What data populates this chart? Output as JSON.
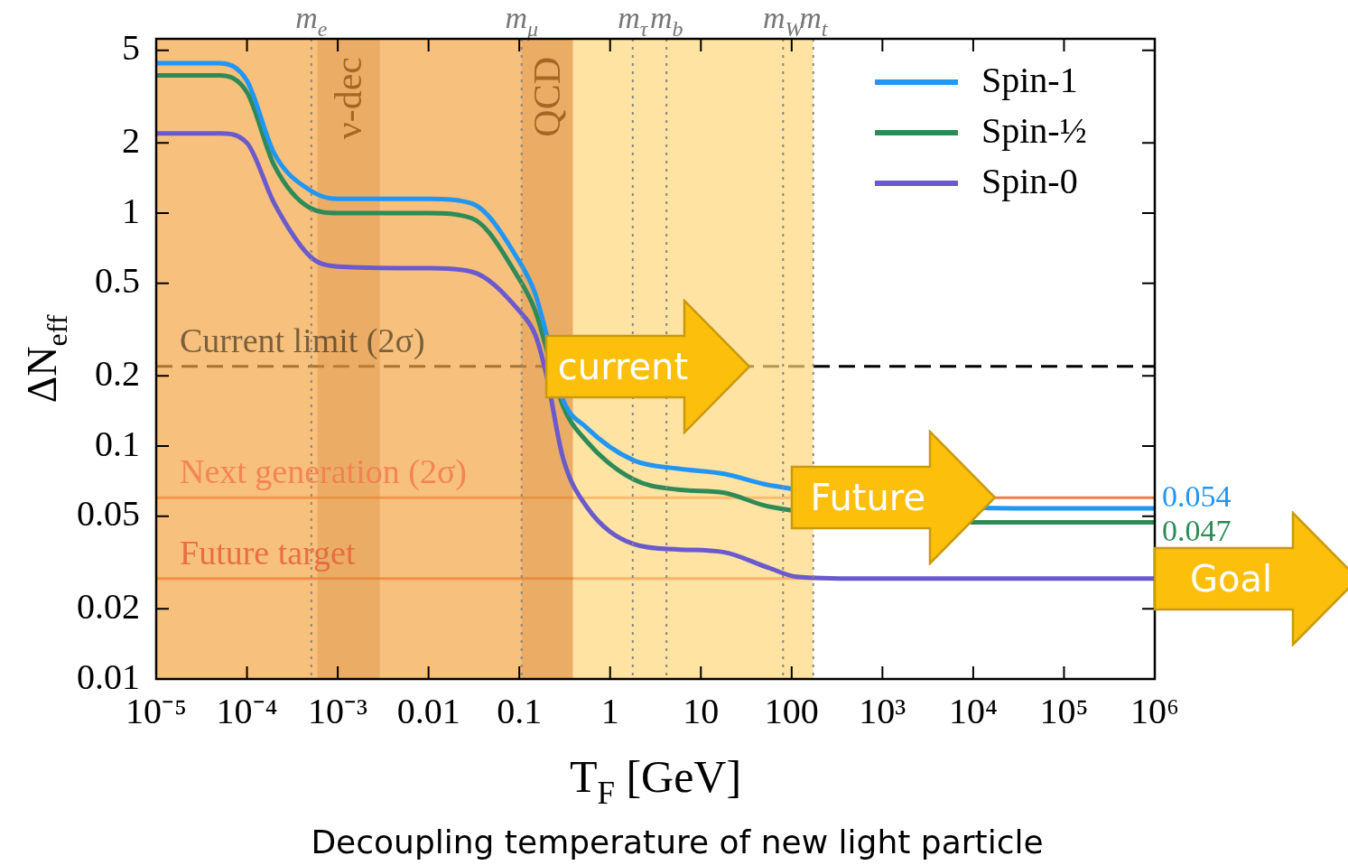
{
  "chart_data": {
    "type": "line",
    "xlabel": "T$_{F}$ [GeV]",
    "ylabel": "ΔN$_{eff}$",
    "log": "xy",
    "xlim": [
      1e-05,
      1000000
    ],
    "ylim": [
      0.01,
      5.6
    ],
    "xticks": [
      {
        "value": 1e-05,
        "label": "10⁻⁵"
      },
      {
        "value": 0.0001,
        "label": "10⁻⁴"
      },
      {
        "value": 0.001,
        "label": "10⁻³"
      },
      0.01,
      0.1,
      1,
      10,
      100,
      {
        "value": 1000,
        "label": "10³"
      },
      {
        "value": 10000,
        "label": "10⁴"
      },
      {
        "value": 100000,
        "label": "10⁵"
      },
      {
        "value": 1000000,
        "label": "10⁶"
      }
    ],
    "yticks": [
      0.01,
      0.02,
      0.05,
      0.1,
      0.2,
      0.5,
      1,
      2,
      5
    ],
    "x": [
      1e-05,
      5e-05,
      0.0001,
      0.0002,
      0.0005,
      0.001,
      0.01,
      0.03,
      0.1,
      0.15,
      0.2,
      0.3,
      0.55,
      1.8,
      5.6,
      18,
      56,
      113,
      550,
      1000000
    ],
    "series": [
      {
        "name": "Spin-1",
        "color": "#2196f3",
        "x": [
          1e-05,
          5e-05,
          0.0001,
          0.0002,
          0.0005,
          0.001,
          0.01,
          0.03,
          0.1,
          0.15,
          0.2,
          0.3,
          0.55,
          1.8,
          5.6,
          18,
          56,
          30000,
          1000000
        ],
        "values": [
          4.4,
          4.4,
          3.7,
          1.8,
          1.25,
          1.15,
          1.15,
          1.1,
          0.62,
          0.45,
          0.3,
          0.16,
          0.12,
          0.087,
          0.08,
          0.076,
          0.068,
          0.054,
          0.054
        ],
        "value_labels": [
          null,
          null,
          null,
          null,
          null,
          null,
          null,
          null,
          null,
          null,
          null,
          null,
          null,
          null,
          null,
          null,
          null,
          null,
          "0.054"
        ]
      },
      {
        "name": "Spin-½",
        "color": "#2e8b57",
        "x": [
          1e-05,
          5e-05,
          0.0001,
          0.0002,
          0.0005,
          0.001,
          0.01,
          0.03,
          0.1,
          0.15,
          0.2,
          0.3,
          0.55,
          1.8,
          5.6,
          18,
          56,
          30000,
          1000000
        ],
        "values": [
          3.9,
          3.9,
          3.3,
          1.6,
          1.05,
          1.0,
          1.0,
          0.95,
          0.52,
          0.38,
          0.26,
          0.15,
          0.105,
          0.072,
          0.065,
          0.063,
          0.055,
          0.047,
          0.047
        ],
        "value_labels": [
          null,
          null,
          null,
          null,
          null,
          null,
          null,
          null,
          null,
          null,
          null,
          null,
          null,
          null,
          null,
          null,
          null,
          null,
          "0.047"
        ]
      },
      {
        "name": "Spin-0",
        "color": "#6a5acd",
        "values": [
          2.2,
          2.2,
          2.0,
          1.1,
          0.65,
          0.59,
          0.58,
          0.56,
          0.38,
          0.3,
          0.2,
          0.09,
          0.055,
          0.038,
          0.036,
          0.035,
          0.03,
          0.0275,
          0.027,
          0.027
        ]
      }
    ],
    "legend": "top right",
    "marker": "none",
    "line_style": "solid",
    "ref_lines": [
      {
        "axis": "y",
        "value": 0.22,
        "label": "Current limit (2σ)",
        "color": "#000000",
        "line_style": "dashed"
      },
      {
        "axis": "y",
        "value": 0.06,
        "label": "Next generation (2σ)",
        "color": "#f47a50",
        "line_style": "solid"
      },
      {
        "axis": "y",
        "value": 0.027,
        "label": "Future target",
        "color": "#e8603c",
        "line_style": "solid"
      },
      {
        "axis": "x",
        "value": 0.000511,
        "label": "m$_{e}$",
        "color": "#888888",
        "line_style": "dotted"
      },
      {
        "axis": "x",
        "value": 0.106,
        "label": "m$_{μ}$",
        "color": "#888888",
        "line_style": "dotted"
      },
      {
        "axis": "x",
        "value": 1.777,
        "label": "m$_{τ}$",
        "color": "#888888",
        "line_style": "dotted"
      },
      {
        "axis": "x",
        "value": 4.18,
        "label": "m$_{b}$",
        "color": "#888888",
        "line_style": "dotted"
      },
      {
        "axis": "x",
        "value": 80.4,
        "label": "m$_{W}$",
        "color": "#888888",
        "line_style": "dotted"
      },
      {
        "axis": "x",
        "value": 173,
        "label": "m$_{t}$",
        "color": "#888888",
        "line_style": "dotted"
      }
    ],
    "bands": [
      {
        "axis": "x",
        "from": 1e-05,
        "to": 0.39,
        "color": "#f3a545"
      },
      {
        "axis": "x",
        "from": 0.39,
        "to": 173,
        "color": "#fdd77a"
      },
      {
        "axis": "x",
        "from": 0.0006,
        "to": 0.0029,
        "label": "ν-dec",
        "color": "#d48a40"
      },
      {
        "axis": "x",
        "from": 0.106,
        "to": 0.39,
        "label": "QCD",
        "color": "#d48a40"
      }
    ],
    "annotations": [
      {
        "text": "current",
        "x": 0.2,
        "y": 0.22
      },
      {
        "text": "Future",
        "x": 100,
        "y": 0.06
      },
      {
        "text": "Goal",
        "x": 1000000,
        "y": 0.027
      },
      "Decoupling temperature of new light particle"
    ]
  }
}
